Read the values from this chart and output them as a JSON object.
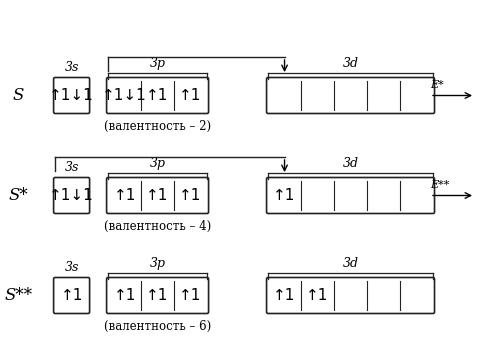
{
  "bg_color": "#ffffff",
  "fig_width": 4.96,
  "fig_height": 3.6,
  "rows": [
    {
      "label": "S",
      "valency_text": "(валентность – 2)",
      "energy_label": "E*",
      "show_energy": true,
      "orbitals_3s": [
        "↑1↓1"
      ],
      "orbitals_3p": [
        "↑1↓1",
        "↑1",
        "↑1"
      ],
      "orbitals_3d": [
        "",
        "",
        "",
        "",
        ""
      ],
      "show_bracket": true,
      "bracket_starts_at_3s": false
    },
    {
      "label": "S*",
      "valency_text": "(валентность – 4)",
      "energy_label": "E**",
      "show_energy": true,
      "orbitals_3s": [
        "↑1↓1"
      ],
      "orbitals_3p": [
        "↑1",
        "↑1",
        "↑1"
      ],
      "orbitals_3d": [
        "↑1",
        "",
        "",
        "",
        ""
      ],
      "show_bracket": true,
      "bracket_starts_at_3s": true
    },
    {
      "label": "S**",
      "valency_text": "(валентность – 6)",
      "energy_label": "",
      "show_energy": false,
      "orbitals_3s": [
        "↑1"
      ],
      "orbitals_3p": [
        "↑1",
        "↑1",
        "↑1"
      ],
      "orbitals_3d": [
        "↑1",
        "↑1",
        "",
        "",
        ""
      ],
      "show_bracket": false,
      "bracket_starts_at_3s": false
    }
  ]
}
